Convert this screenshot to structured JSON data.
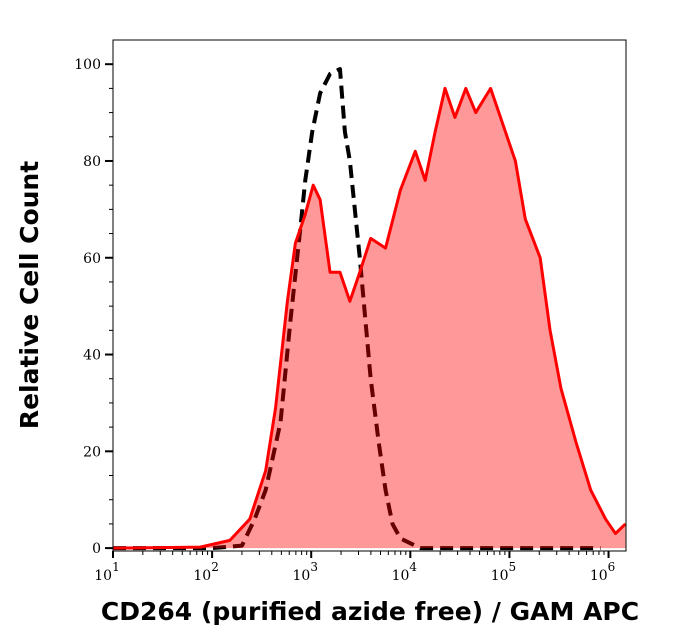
{
  "chart_data": {
    "type": "area",
    "title": "",
    "xlabel": "CD264 (purified azide free) / GAM APC",
    "ylabel": "Relative Cell Count",
    "x_scale": "log",
    "xlim": [
      10,
      1500000
    ],
    "ylim": [
      -0.6,
      105
    ],
    "x_ticks": [
      10,
      100,
      1000,
      10000,
      100000,
      1000000
    ],
    "x_tick_labels": [
      {
        "base": "10",
        "exp": "1"
      },
      {
        "base": "10",
        "exp": "2"
      },
      {
        "base": "10",
        "exp": "3"
      },
      {
        "base": "10",
        "exp": "4"
      },
      {
        "base": "10",
        "exp": "5"
      },
      {
        "base": "10",
        "exp": "6"
      }
    ],
    "y_ticks": [
      0,
      20,
      40,
      60,
      80,
      100
    ],
    "y_tick_labels": [
      "0",
      "20",
      "40",
      "60",
      "80",
      "100"
    ],
    "grid": false,
    "legend": "none",
    "series": [
      {
        "style": "dashed-line",
        "color": "#000000",
        "x": [
          10,
          100,
          200,
          269,
          347,
          490,
          617,
          776,
          871,
          1023,
          1230,
          1549,
          1950,
          2188,
          2455,
          2754,
          3090,
          3981,
          4786,
          5623,
          6607,
          7943,
          12589,
          831764
        ],
        "y": [
          0,
          0,
          0.5,
          6,
          12,
          26,
          47,
          66,
          76,
          86,
          94,
          98,
          99,
          86,
          80,
          70,
          60,
          35,
          22,
          12,
          5,
          2,
          0,
          0
        ]
      },
      {
        "style": "filled-area",
        "color": "#ff0000",
        "fill": "#ff9999",
        "x": [
          10,
          76,
          151,
          240,
          347,
          437,
          575,
          692,
          871,
          1047,
          1230,
          1549,
          1950,
          2455,
          3090,
          3981,
          5623,
          7943,
          11220,
          14125,
          17783,
          22387,
          28184,
          36308,
          45709,
          64565,
          91201,
          114815,
          144544,
          204174,
          257040,
          331131,
          467735,
          660693,
          933254,
          1174898,
          1479108
        ],
        "y": [
          0,
          0.2,
          1.6,
          6,
          16,
          29,
          51,
          63,
          69,
          75,
          72,
          57,
          57,
          51,
          57,
          64,
          62,
          74,
          82,
          76,
          86,
          95,
          89,
          95,
          90,
          95,
          86,
          80,
          68,
          60,
          45,
          33,
          22,
          12,
          6,
          3,
          5
        ]
      }
    ]
  }
}
